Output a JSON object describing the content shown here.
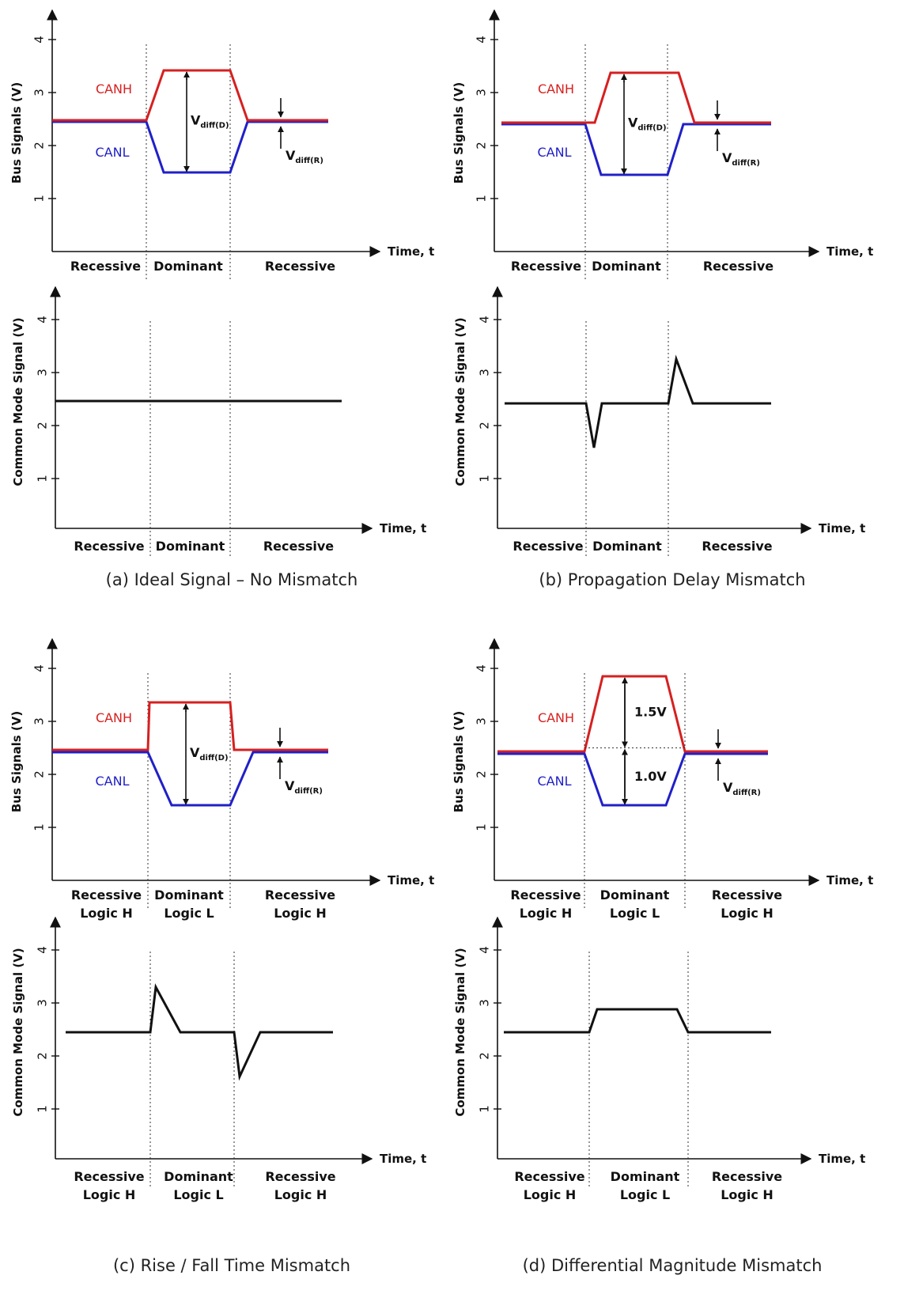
{
  "colors": {
    "canh": "#d62020",
    "canl": "#2020c8",
    "common_mode": "#111111"
  },
  "axes": {
    "bus_ylabel": "Bus Signals (V)",
    "cm_ylabel": "Common Mode Signal (V)",
    "time_label": "Time, t",
    "y_ticks": [
      "1",
      "2",
      "3",
      "4"
    ]
  },
  "signals": {
    "canh_label": "CANH",
    "canl_label": "CANL"
  },
  "vdiff": {
    "v_main": "V",
    "dom_sub": "diff(D)",
    "rec_sub": "diff(R)"
  },
  "panels": [
    {
      "caption": "(a) Ideal Signal – No Mismatch",
      "segments": [
        [
          "Recessive"
        ],
        [
          "Dominant"
        ],
        [
          "Recessive"
        ]
      ],
      "bus_annotation": "vdiff"
    },
    {
      "caption": "(b) Propagation Delay Mismatch",
      "segments": [
        [
          "Recessive"
        ],
        [
          "Dominant"
        ],
        [
          "Recessive"
        ]
      ],
      "bus_annotation": "vdiff"
    },
    {
      "caption": "(c) Rise / Fall Time Mismatch",
      "segments": [
        [
          "Recessive",
          "Logic H"
        ],
        [
          "Dominant",
          "Logic L"
        ],
        [
          "Recessive",
          "Logic H"
        ]
      ],
      "bus_annotation": "vdiff"
    },
    {
      "caption": "(d) Differential Magnitude Mismatch",
      "segments": [
        [
          "Recessive",
          "Logic H"
        ],
        [
          "Dominant",
          "Logic L"
        ],
        [
          "Recessive",
          "Logic H"
        ]
      ],
      "bus_annotation": "split",
      "upper_value": "1.5V",
      "lower_value": "1.0V"
    }
  ]
}
